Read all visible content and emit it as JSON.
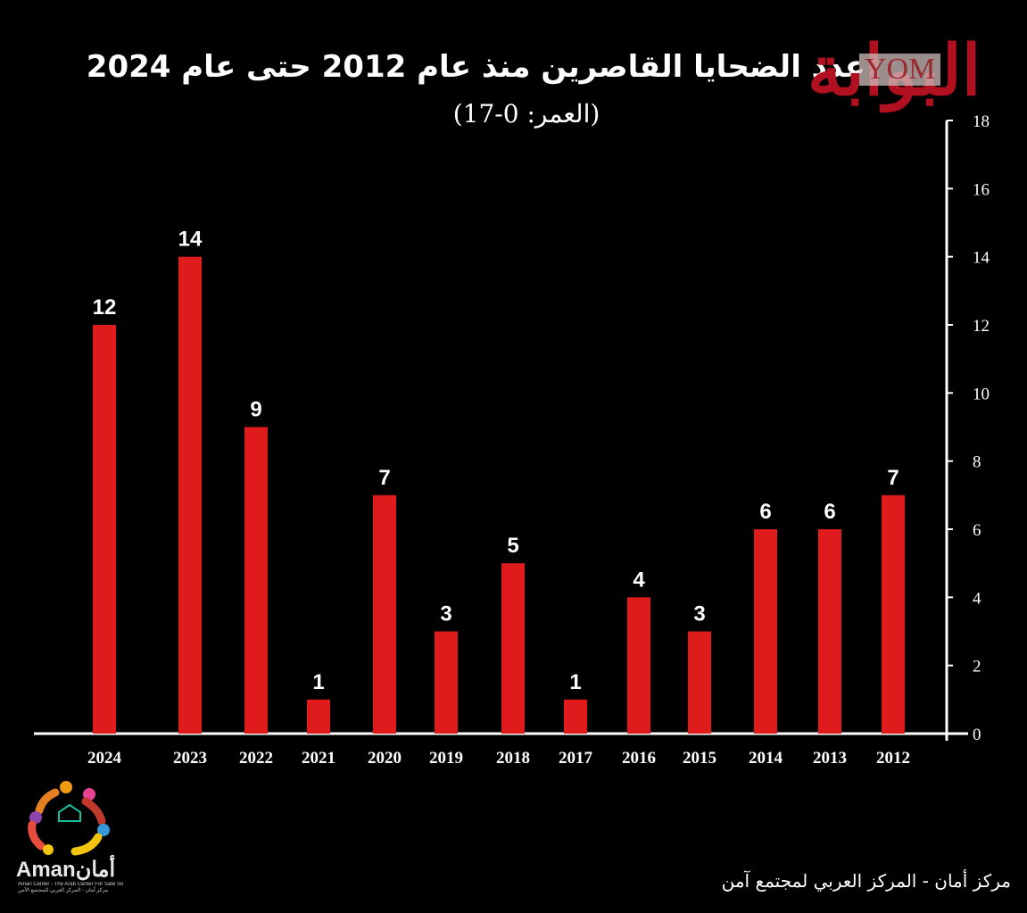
{
  "header": {
    "title": "عدد الضحايا القاصرين منذ عام 2012 حتى عام 2024",
    "subtitle": "(العمر: 0-17)"
  },
  "watermark": {
    "script": "البوابة",
    "yom": "YOM"
  },
  "logo": {
    "name": "Amanأمان",
    "tagline_en": "Aman Center - The Arab Center For Safe Society",
    "tagline_ar": "مركز أمان - المركز العربي للمجتمع الآمن"
  },
  "footer": {
    "credit": "مركز أمان - المركز العربي لمجتمع آمن"
  },
  "colors": {
    "background": "#000000",
    "bar": "#e01b1b",
    "text": "#ffffff",
    "axis": "#ffffff"
  },
  "chart_data": {
    "type": "bar",
    "categories": [
      "2024",
      "2023",
      "2022",
      "2021",
      "2020",
      "2019",
      "2018",
      "2017",
      "2016",
      "2015",
      "2014",
      "2013",
      "2012"
    ],
    "values": [
      12,
      14,
      9,
      1,
      7,
      3,
      5,
      1,
      4,
      3,
      6,
      6,
      7
    ],
    "value_labels": [
      "12",
      "14",
      "9",
      "1",
      "7",
      "3",
      "5",
      "1",
      "4",
      "3",
      "6",
      "6",
      "7"
    ],
    "yticks": [
      "0",
      "2",
      "4",
      "6",
      "8",
      "10",
      "12",
      "14",
      "16",
      "18"
    ],
    "ylim": [
      0,
      18
    ],
    "y_axis_side": "right",
    "grid": false,
    "legend": "none"
  }
}
